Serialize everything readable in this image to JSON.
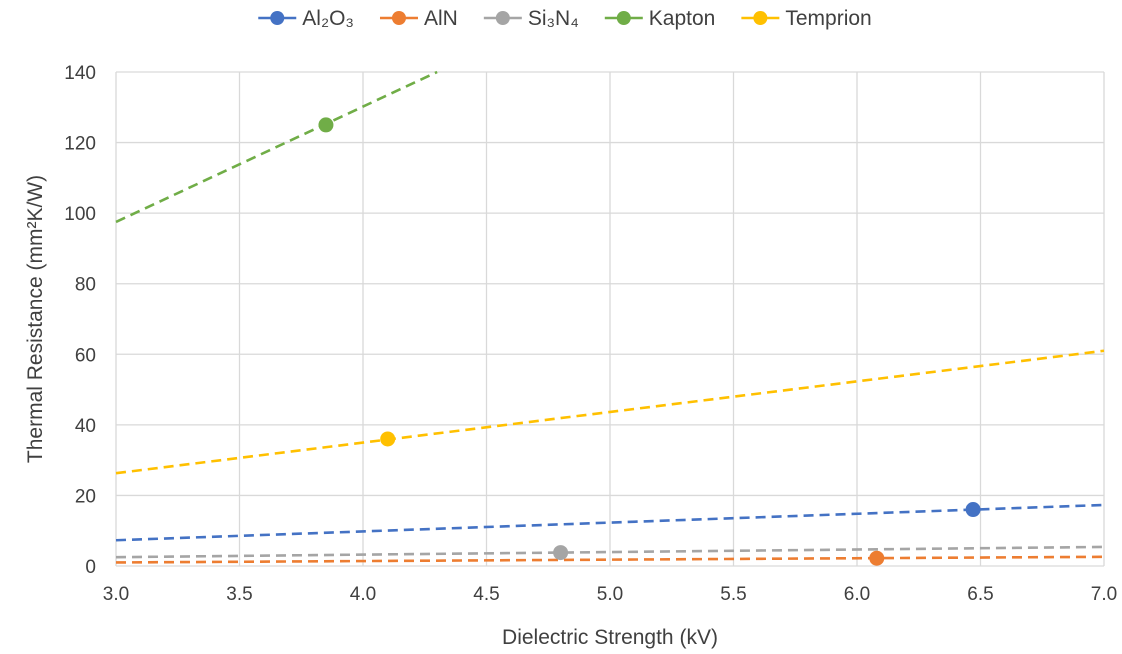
{
  "chart_data": {
    "type": "scatter",
    "xlabel": "Dielectric Strength (kV)",
    "ylabel": "Thermal Resistance (mm²K/W)",
    "xlim": [
      3.0,
      7.0
    ],
    "ylim": [
      0,
      140
    ],
    "x_ticks": [
      "3.0",
      "3.5",
      "4.0",
      "4.5",
      "5.0",
      "5.5",
      "6.0",
      "6.5",
      "7.0"
    ],
    "y_ticks": [
      "0",
      "20",
      "40",
      "60",
      "80",
      "100",
      "120",
      "140"
    ],
    "grid": true,
    "legend_position": "top",
    "series": [
      {
        "name": "Al₂O₃",
        "color": "#4472c4",
        "point": {
          "x": 6.47,
          "y": 16.0
        },
        "trendline": {
          "x_start": 3.0,
          "y_start": 7.3,
          "x_end": 7.0,
          "y_end": 17.3
        }
      },
      {
        "name": "AlN",
        "color": "#ed7d31",
        "point": {
          "x": 6.08,
          "y": 2.2
        },
        "trendline": {
          "x_start": 3.0,
          "y_start": 1.0,
          "x_end": 7.0,
          "y_end": 2.6
        }
      },
      {
        "name": "Si₃N₄",
        "color": "#a5a5a5",
        "point": {
          "x": 4.8,
          "y": 3.8
        },
        "trendline": {
          "x_start": 3.0,
          "y_start": 2.5,
          "x_end": 7.0,
          "y_end": 5.4
        }
      },
      {
        "name": "Kapton",
        "color": "#70ad47",
        "point": {
          "x": 3.85,
          "y": 125.0
        },
        "trendline": {
          "x_start": 3.0,
          "y_start": 97.5,
          "x_end": 4.3,
          "y_end": 140.0
        }
      },
      {
        "name": "Temprion",
        "color": "#ffc000",
        "point": {
          "x": 4.1,
          "y": 36.0
        },
        "trendline": {
          "x_start": 3.0,
          "y_start": 26.3,
          "x_end": 7.0,
          "y_end": 61.0
        }
      }
    ]
  }
}
